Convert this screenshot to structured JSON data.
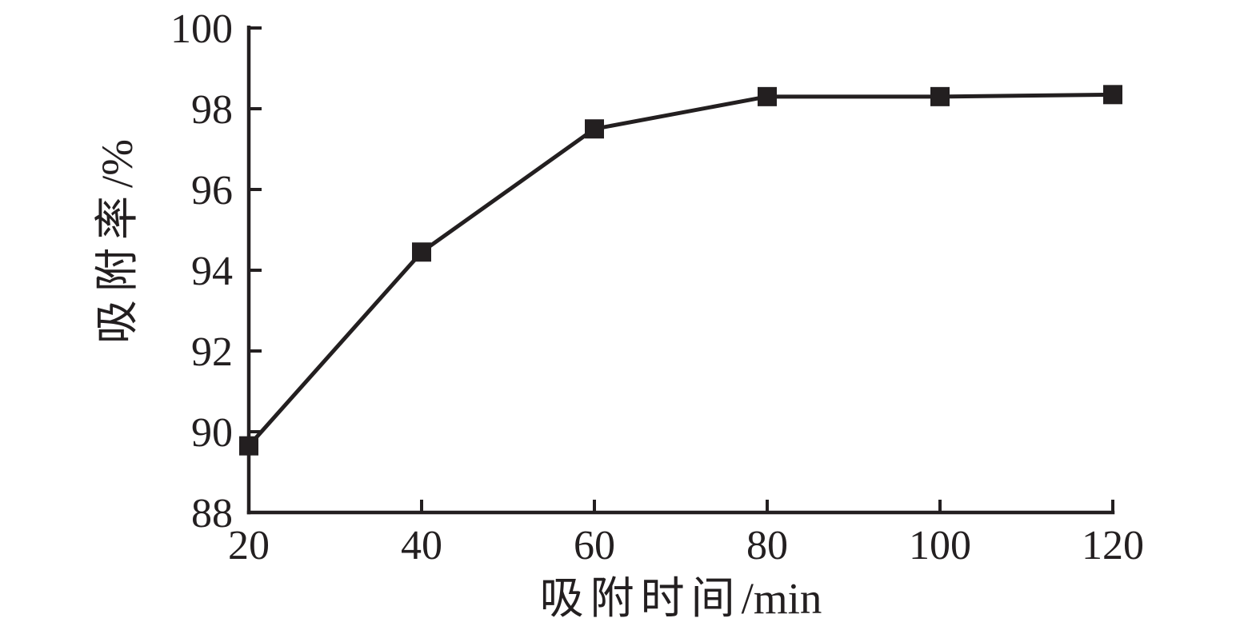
{
  "chart_data": {
    "type": "line",
    "title": "",
    "xlabel": "吸附时间/min",
    "xlabel_cjk": "吸附时间",
    "xlabel_unit": "/min",
    "ylabel": "吸附率/%",
    "ylabel_cjk": "吸附率",
    "ylabel_unit": "/%",
    "x": [
      20,
      40,
      60,
      80,
      100,
      120
    ],
    "series": [
      {
        "name": "吸附率",
        "values": [
          89.65,
          94.45,
          97.5,
          98.3,
          98.3,
          98.35
        ]
      }
    ],
    "xlim": [
      20,
      120
    ],
    "ylim": [
      88,
      100
    ],
    "x_ticks": [
      "20",
      "40",
      "60",
      "80",
      "100",
      "120"
    ],
    "x_tick_values": [
      20,
      40,
      60,
      80,
      100,
      120
    ],
    "y_ticks": [
      "88",
      "90",
      "92",
      "94",
      "96",
      "98",
      "100"
    ],
    "y_tick_values": [
      88,
      90,
      92,
      94,
      96,
      98,
      100
    ],
    "grid": false,
    "legend_position": "none",
    "marker": "square",
    "marker_size": 24,
    "line_width": 5,
    "axis_width": 4.5,
    "tick_length": 16,
    "ink_color": "#231f20",
    "background_color": "#ffffff"
  }
}
